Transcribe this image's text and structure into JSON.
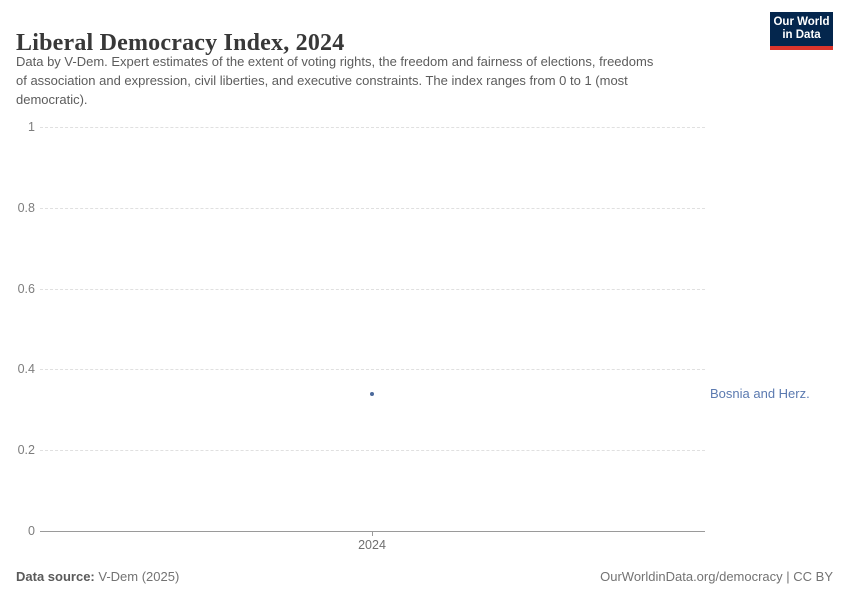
{
  "header": {
    "title": "Liberal Democracy Index, 2024",
    "subtitle_lines": [
      "Data by V-Dem. Expert estimates of the extent of voting rights, the freedom and fairness of elections, freedoms",
      "of association and expression, civil liberties, and executive constraints. The index ranges from 0 to 1 (most",
      "democratic)."
    ],
    "logo": {
      "line1": "Our World",
      "line2": "in Data",
      "bg_color": "#04264d",
      "accent_color": "#dc352c"
    }
  },
  "chart_data": {
    "type": "scatter",
    "title": "Liberal Democracy Index, 2024",
    "xlabel": "",
    "ylabel": "",
    "xticks": [
      2024
    ],
    "yticks": [
      0,
      0.2,
      0.4,
      0.6,
      0.8,
      1
    ],
    "ylim": [
      0,
      1
    ],
    "grid": "horizontal-dashed",
    "legend_position": "right-inline-label",
    "series": [
      {
        "name": "Bosnia and Herz.",
        "x": 2024,
        "y": 0.34,
        "color": "#4c6a9c",
        "label_color": "#5b7ab0"
      }
    ],
    "xtick_frac": 0.499
  },
  "footer": {
    "source_label": "Data source:",
    "source_value": " V-Dem (2025)",
    "right_text": "OurWorldinData.org/democracy | CC BY"
  }
}
